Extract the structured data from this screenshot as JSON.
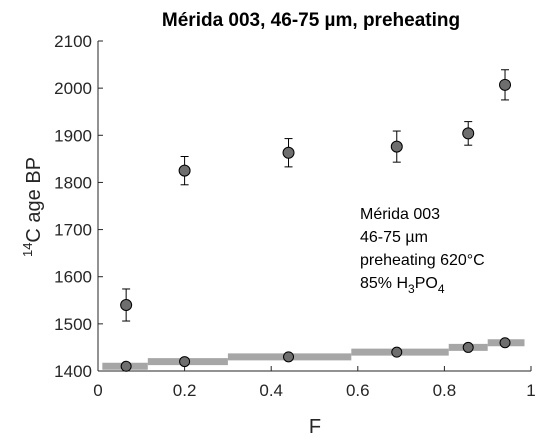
{
  "chart_data": {
    "type": "scatter",
    "title": "Mérida 003, 46-75 µm, preheating",
    "xlabel": "F",
    "ylabel": {
      "sup": "14",
      "text": "C age BP"
    },
    "xlim": [
      0,
      1
    ],
    "ylim": [
      1400,
      2100
    ],
    "xticks": [
      {
        "value": 0,
        "label": "0"
      },
      {
        "value": 0.2,
        "label": "0.2"
      },
      {
        "value": 0.4,
        "label": "0.4"
      },
      {
        "value": 0.6,
        "label": "0.6"
      },
      {
        "value": 0.8,
        "label": "0.8"
      },
      {
        "value": 1,
        "label": "1"
      }
    ],
    "yticks": [
      {
        "value": 1400,
        "label": "1400"
      },
      {
        "value": 1500,
        "label": "1500"
      },
      {
        "value": 1600,
        "label": "1600"
      },
      {
        "value": 1700,
        "label": "1700"
      },
      {
        "value": 1800,
        "label": "1800"
      },
      {
        "value": 1900,
        "label": "1900"
      },
      {
        "value": 2000,
        "label": "2000"
      },
      {
        "value": 2100,
        "label": "2100"
      }
    ],
    "grid": false,
    "series": [
      {
        "kind": "points-with-error",
        "color": "#6e6e6e",
        "points": [
          {
            "x": 0.065,
            "y": 1540,
            "err": 34
          },
          {
            "x": 0.2,
            "y": 1825,
            "err": 30
          },
          {
            "x": 0.44,
            "y": 1863,
            "err": 30
          },
          {
            "x": 0.69,
            "y": 1876,
            "err": 33
          },
          {
            "x": 0.855,
            "y": 1904,
            "err": 25
          },
          {
            "x": 0.94,
            "y": 2007,
            "err": 32
          }
        ]
      },
      {
        "kind": "step",
        "color": "#a6a6a6",
        "steps": [
          {
            "x0": 0.01,
            "x1": 0.115,
            "y": 1410
          },
          {
            "x0": 0.115,
            "x1": 0.3,
            "y": 1420
          },
          {
            "x0": 0.3,
            "x1": 0.585,
            "y": 1430
          },
          {
            "x0": 0.585,
            "x1": 0.81,
            "y": 1440
          },
          {
            "x0": 0.81,
            "x1": 0.9,
            "y": 1450
          },
          {
            "x0": 0.9,
            "x1": 0.985,
            "y": 1460
          }
        ]
      },
      {
        "kind": "points",
        "color": "#6e6e6e",
        "points": [
          {
            "x": 0.065,
            "y": 1410
          },
          {
            "x": 0.2,
            "y": 1420
          },
          {
            "x": 0.44,
            "y": 1430
          },
          {
            "x": 0.69,
            "y": 1440
          },
          {
            "x": 0.855,
            "y": 1450
          },
          {
            "x": 0.94,
            "y": 1460
          }
        ]
      }
    ],
    "annotation": [
      {
        "key": "line1",
        "text": "Mérida 003"
      },
      {
        "key": "line2",
        "text": "46-75 µm"
      },
      {
        "key": "line3",
        "text": "preheating 620°C"
      },
      {
        "key": "line4",
        "parts": [
          "85% H",
          "3",
          "PO",
          "4"
        ]
      }
    ]
  }
}
